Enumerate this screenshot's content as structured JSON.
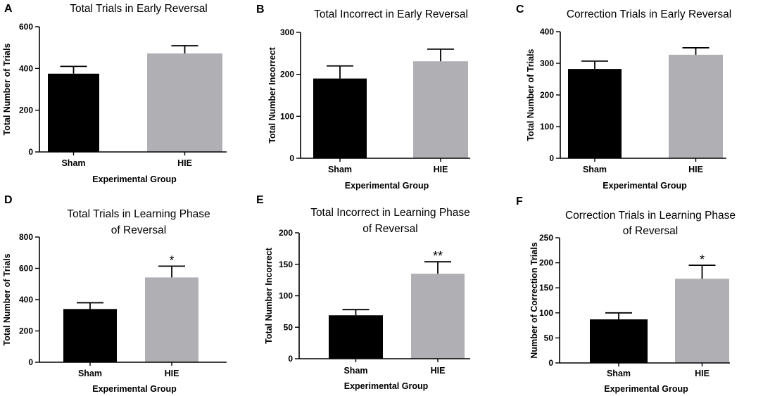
{
  "chart_data": [
    {
      "panel": "A",
      "type": "bar",
      "title": [
        "Total Trials in Early Reversal"
      ],
      "xlabel": "Experimental Group",
      "ylabel": "Total Number of Trials",
      "ylim": [
        0,
        600
      ],
      "yticks": [
        0,
        200,
        400,
        600
      ],
      "categories": [
        "Sham",
        "HIE"
      ],
      "values": [
        375,
        472
      ],
      "errors": [
        35,
        37
      ],
      "colors": [
        "#000000",
        "#b0afb4"
      ],
      "significance": [
        "",
        ""
      ]
    },
    {
      "panel": "B",
      "type": "bar",
      "title": [
        "Total Incorrect in Early Reversal"
      ],
      "xlabel": "Experimental Group",
      "ylabel": "Total Number Incorrect",
      "ylim": [
        0,
        300
      ],
      "yticks": [
        0,
        100,
        200,
        300
      ],
      "categories": [
        "Sham",
        "HIE"
      ],
      "values": [
        190,
        231
      ],
      "errors": [
        30,
        29
      ],
      "colors": [
        "#000000",
        "#b0afb4"
      ],
      "significance": [
        "",
        ""
      ]
    },
    {
      "panel": "C",
      "type": "bar",
      "title": [
        "Correction Trials in Early Reversal"
      ],
      "xlabel": "Experimental Group",
      "ylabel": "Total Number of Trials",
      "ylim": [
        0,
        400
      ],
      "yticks": [
        0,
        100,
        200,
        300,
        400
      ],
      "categories": [
        "Sham",
        "HIE"
      ],
      "values": [
        282,
        327
      ],
      "errors": [
        25,
        22
      ],
      "colors": [
        "#000000",
        "#b0afb4"
      ],
      "significance": [
        "",
        ""
      ]
    },
    {
      "panel": "D",
      "type": "bar",
      "title": [
        "Total Trials in Learning Phase",
        "of Reversal"
      ],
      "xlabel": "Experimental Group",
      "ylabel": "Total Number of Trials",
      "ylim": [
        0,
        800
      ],
      "yticks": [
        0,
        200,
        400,
        600,
        800
      ],
      "categories": [
        "Sham",
        "HIE"
      ],
      "values": [
        340,
        542
      ],
      "errors": [
        40,
        72
      ],
      "colors": [
        "#000000",
        "#b0afb4"
      ],
      "significance": [
        "",
        "*"
      ]
    },
    {
      "panel": "E",
      "type": "bar",
      "title": [
        "Total Incorrect in Learning Phase",
        "of Reversal"
      ],
      "xlabel": "Experimental Group",
      "ylabel": "Total Number Incorrect",
      "ylim": [
        0,
        200
      ],
      "yticks": [
        0,
        50,
        100,
        150,
        200
      ],
      "categories": [
        "Sham",
        "HIE"
      ],
      "values": [
        69,
        135
      ],
      "errors": [
        9,
        19
      ],
      "colors": [
        "#000000",
        "#b0afb4"
      ],
      "significance": [
        "",
        "**"
      ]
    },
    {
      "panel": "F",
      "type": "bar",
      "title": [
        "Correction Trials in Learning Phase",
        "of Reversal"
      ],
      "xlabel": "Experimental Group",
      "ylabel": "Number of Correction Trials",
      "ylim": [
        0,
        250
      ],
      "yticks": [
        0,
        50,
        100,
        150,
        200,
        250
      ],
      "categories": [
        "Sham",
        "HIE"
      ],
      "values": [
        87,
        168
      ],
      "errors": [
        13,
        27
      ],
      "colors": [
        "#000000",
        "#b0afb4"
      ],
      "significance": [
        "",
        "*"
      ]
    }
  ]
}
